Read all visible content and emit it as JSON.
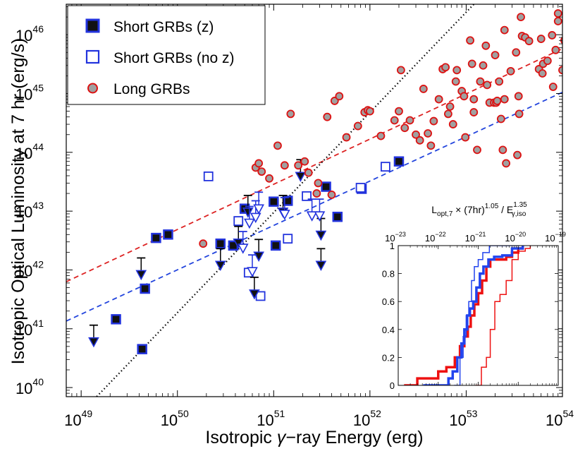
{
  "chart_data": {
    "type": "scatter",
    "title": "",
    "xlabel_pre": "Isotropic ",
    "xlabel_gamma": "γ",
    "xlabel_post": "−ray Energy  (erg)",
    "ylabel": "Isotropic Optical Luminosity at 7 hr  (erg/s)",
    "xscale": "log",
    "yscale": "log",
    "xlim": [
      7e+48,
      1e+54
    ],
    "ylim": [
      7e+39,
      3.3e+46
    ],
    "x_ticks": [
      {
        "base": "10",
        "exp": "49",
        "value": 1e+49
      },
      {
        "base": "10",
        "exp": "50",
        "value": 1e+50
      },
      {
        "base": "10",
        "exp": "51",
        "value": 1e+51
      },
      {
        "base": "10",
        "exp": "52",
        "value": 1e+52
      },
      {
        "base": "10",
        "exp": "53",
        "value": 1e+53
      },
      {
        "base": "10",
        "exp": "54",
        "value": 1e+54
      }
    ],
    "y_ticks": [
      {
        "base": "10",
        "exp": "40",
        "value": 1e+40
      },
      {
        "base": "10",
        "exp": "41",
        "value": 1e+41
      },
      {
        "base": "10",
        "exp": "42",
        "value": 1e+42
      },
      {
        "base": "10",
        "exp": "43",
        "value": 1e+43
      },
      {
        "base": "10",
        "exp": "44",
        "value": 1e+44
      },
      {
        "base": "10",
        "exp": "45",
        "value": 1e+45
      },
      {
        "base": "10",
        "exp": "46",
        "value": 1e+46
      }
    ],
    "legend": [
      {
        "key": "short_z",
        "label": "Short GRBs (z)"
      },
      {
        "key": "short_noz",
        "label": "Short GRBs (no z)"
      },
      {
        "key": "long",
        "label": "Long GRBs"
      }
    ],
    "colors": {
      "short": "#2233dd",
      "long_fill": "#a0a0a0",
      "long_edge": "#dd1111",
      "red_fit": "#dd2222",
      "blue_fit": "#2244dd"
    },
    "series": [
      {
        "name": "Short GRBs (z)",
        "marker": "filled-square",
        "points": [
          {
            "x": 2.3e+49,
            "y": 1.45e+41
          },
          {
            "x": 4.3e+49,
            "y": 4.5e+40
          },
          {
            "x": 4.6e+49,
            "y": 4.8e+41
          },
          {
            "x": 6e+49,
            "y": 3.5e+42
          },
          {
            "x": 8e+49,
            "y": 4e+42
          },
          {
            "x": 2.8e+50,
            "y": 2.8e+42
          },
          {
            "x": 3.8e+50,
            "y": 2.6e+42
          },
          {
            "x": 5e+50,
            "y": 1.1e+43
          },
          {
            "x": 1e+51,
            "y": 1.45e+43
          },
          {
            "x": 1.05e+51,
            "y": 2.6e+42
          },
          {
            "x": 1.4e+51,
            "y": 1.5e+43
          },
          {
            "x": 3.5e+51,
            "y": 2.6e+43
          },
          {
            "x": 4.6e+51,
            "y": 8e+42
          },
          {
            "x": 8.2e+51,
            "y": 2.4e+43
          },
          {
            "x": 2e+52,
            "y": 7e+43
          }
        ]
      },
      {
        "name": "Short GRBs (no z)",
        "marker": "open-square",
        "points": [
          {
            "x": 2.1e+50,
            "y": 3.9e+43
          },
          {
            "x": 4.3e+50,
            "y": 6.8e+42
          },
          {
            "x": 5.5e+50,
            "y": 9e+41
          },
          {
            "x": 7.3e+50,
            "y": 3.6e+41
          },
          {
            "x": 1.4e+51,
            "y": 3.4e+42
          },
          {
            "x": 2.2e+51,
            "y": 1.8e+43
          },
          {
            "x": 8e+51,
            "y": 2.5e+43
          },
          {
            "x": 1.45e+52,
            "y": 5.7e+43
          }
        ]
      },
      {
        "name": "Short GRBs (z) upper limits",
        "marker": "filled-triangle-limit",
        "points": [
          {
            "x": 1.35e+49,
            "y": 1.15e+41
          },
          {
            "x": 4.2e+49,
            "y": 1.6e+42
          },
          {
            "x": 2.8e+50,
            "y": 2.3e+42
          },
          {
            "x": 4.3e+50,
            "y": 5.5e+42
          },
          {
            "x": 5.4e+50,
            "y": 1.85e+43
          },
          {
            "x": 6.3e+50,
            "y": 7.5e+41
          },
          {
            "x": 7e+50,
            "y": 3.3e+42
          },
          {
            "x": 1.25e+51,
            "y": 1.85e+43
          },
          {
            "x": 1.9e+51,
            "y": 7.5e+43
          },
          {
            "x": 3.1e+51,
            "y": 7.5e+42
          },
          {
            "x": 3.1e+51,
            "y": 2.3e+42
          }
        ]
      },
      {
        "name": "Short GRBs (no z) upper limits",
        "marker": "open-triangle-limit",
        "points": [
          {
            "x": 4.8e+50,
            "y": 4.5e+42
          },
          {
            "x": 5.6e+50,
            "y": 1.2e+43
          },
          {
            "x": 6e+50,
            "y": 1.8e+42
          },
          {
            "x": 6.5e+50,
            "y": 1.5e+43
          },
          {
            "x": 7e+50,
            "y": 2.1e+43
          },
          {
            "x": 1.3e+51,
            "y": 1.7e+43
          },
          {
            "x": 2.5e+51,
            "y": 1.6e+43
          },
          {
            "x": 3e+51,
            "y": 1.6e+43
          }
        ]
      },
      {
        "name": "Long GRBs",
        "marker": "circle",
        "points": [
          {
            "x": 1.85e+50,
            "y": 2.8e+42
          },
          {
            "x": 6.5e+50,
            "y": 5.5e+43
          },
          {
            "x": 7e+50,
            "y": 6.5e+43
          },
          {
            "x": 7.5e+50,
            "y": 4.7e+43
          },
          {
            "x": 9e+50,
            "y": 3.6e+43
          },
          {
            "x": 1.1e+51,
            "y": 1.3e+44
          },
          {
            "x": 1.3e+51,
            "y": 6e+43
          },
          {
            "x": 1.5e+51,
            "y": 4.5e+44
          },
          {
            "x": 1.8e+51,
            "y": 6e+43
          },
          {
            "x": 2.1e+51,
            "y": 7e+43
          },
          {
            "x": 2.3e+51,
            "y": 4.5e+43
          },
          {
            "x": 2.8e+51,
            "y": 2e+43
          },
          {
            "x": 2.9e+51,
            "y": 3e+43
          },
          {
            "x": 3.6e+51,
            "y": 4e+44
          },
          {
            "x": 4e+51,
            "y": 1.9e+43
          },
          {
            "x": 4.3e+51,
            "y": 7.5e+44
          },
          {
            "x": 4.8e+51,
            "y": 9e+44
          },
          {
            "x": 5.7e+51,
            "y": 1.8e+44
          },
          {
            "x": 7.5e+51,
            "y": 2.8e+44
          },
          {
            "x": 8.8e+51,
            "y": 4.8e+44
          },
          {
            "x": 9.5e+51,
            "y": 5.2e+44
          },
          {
            "x": 1e+52,
            "y": 5e+44
          },
          {
            "x": 1.3e+52,
            "y": 1.9e+44
          },
          {
            "x": 1.8e+52,
            "y": 3.5e+44
          },
          {
            "x": 2e+52,
            "y": 5e+44
          },
          {
            "x": 2.1e+52,
            "y": 2.5e+45
          },
          {
            "x": 2.3e+52,
            "y": 2.6e+44
          },
          {
            "x": 2.6e+52,
            "y": 3.5e+44
          },
          {
            "x": 3e+52,
            "y": 2e+44
          },
          {
            "x": 3.3e+52,
            "y": 1.6e+44
          },
          {
            "x": 3.6e+52,
            "y": 1.2e+45
          },
          {
            "x": 4e+52,
            "y": 2.1e+44
          },
          {
            "x": 4.3e+52,
            "y": 1.3e+44
          },
          {
            "x": 4.6e+52,
            "y": 3.4e+44
          },
          {
            "x": 5.2e+52,
            "y": 8e+44
          },
          {
            "x": 5.7e+52,
            "y": 2.6e+45
          },
          {
            "x": 6.1e+52,
            "y": 2.8e+45
          },
          {
            "x": 6.5e+52,
            "y": 4.5e+44
          },
          {
            "x": 6.8e+52,
            "y": 6e+44
          },
          {
            "x": 7.3e+52,
            "y": 3e+44
          },
          {
            "x": 7.8e+52,
            "y": 1.6e+45
          },
          {
            "x": 8e+52,
            "y": 2.5e+45
          },
          {
            "x": 9e+52,
            "y": 1.1e+45
          },
          {
            "x": 9.5e+52,
            "y": 9e+44
          },
          {
            "x": 9.8e+52,
            "y": 1.8e+44
          },
          {
            "x": 1.1e+53,
            "y": 8e+45
          },
          {
            "x": 1.15e+53,
            "y": 3.2e+45
          },
          {
            "x": 1.2e+53,
            "y": 8e+44
          },
          {
            "x": 1.2e+53,
            "y": 4.8e+44
          },
          {
            "x": 1.3e+53,
            "y": 1.1e+44
          },
          {
            "x": 1.4e+53,
            "y": 1.6e+45
          },
          {
            "x": 1.5e+53,
            "y": 3e+45
          },
          {
            "x": 1.6e+53,
            "y": 6.5e+45
          },
          {
            "x": 1.65e+53,
            "y": 1.4e+45
          },
          {
            "x": 1.75e+53,
            "y": 7e+44
          },
          {
            "x": 1.95e+53,
            "y": 7e+44
          },
          {
            "x": 2e+53,
            "y": 4.5e+45
          },
          {
            "x": 2.05e+53,
            "y": 7e+44
          },
          {
            "x": 2.1e+53,
            "y": 7.5e+44
          },
          {
            "x": 2.2e+53,
            "y": 1.6e+45
          },
          {
            "x": 2.3e+53,
            "y": 3.7e+44
          },
          {
            "x": 2.4e+53,
            "y": 1.1e+44
          },
          {
            "x": 2.5e+53,
            "y": 1.2e+46
          },
          {
            "x": 2.5e+53,
            "y": 8e+44
          },
          {
            "x": 2.6e+53,
            "y": 6.5e+43
          },
          {
            "x": 2.9e+53,
            "y": 2.4e+45
          },
          {
            "x": 3.3e+53,
            "y": 5e+45
          },
          {
            "x": 3.4e+53,
            "y": 9e+43
          },
          {
            "x": 3.5e+53,
            "y": 9e+44
          },
          {
            "x": 3.55e+53,
            "y": 4.5e+44
          },
          {
            "x": 3.7e+53,
            "y": 2e+46
          },
          {
            "x": 3.8e+53,
            "y": 9.5e+45
          },
          {
            "x": 4.1e+53,
            "y": 9e+45
          },
          {
            "x": 4.5e+53,
            "y": 7.8e+45
          },
          {
            "x": 5.7e+53,
            "y": 2.6e+45
          },
          {
            "x": 6e+53,
            "y": 8.5e+45
          },
          {
            "x": 6.2e+53,
            "y": 2.2e+45
          },
          {
            "x": 6.3e+53,
            "y": 3.2e+45
          },
          {
            "x": 7e+53,
            "y": 3.6e+45
          },
          {
            "x": 7.8e+53,
            "y": 9.8e+45
          },
          {
            "x": 9e+53,
            "y": 1.7e+46
          },
          {
            "x": 1e+54,
            "y": 2.5e+45
          },
          {
            "x": 1.05e+54,
            "y": 8e+45
          },
          {
            "x": 8e+53,
            "y": 1.3e+45
          },
          {
            "x": 9e+53,
            "y": 2.3e+46
          },
          {
            "x": 8.5e+53,
            "y": 5.5e+45
          }
        ]
      }
    ],
    "fit_lines": [
      {
        "name": "long-fit",
        "style": "dashed",
        "color": "#dd2222",
        "points": [
          {
            "x": 7e+48,
            "y": 6.3e+41
          },
          {
            "x": 1e+54,
            "y": 5.8e+45
          }
        ]
      },
      {
        "name": "short-fit",
        "style": "dashed",
        "color": "#2244dd",
        "points": [
          {
            "x": 7e+48,
            "y": 1.35e+41
          },
          {
            "x": 1e+54,
            "y": 1.05e+45
          }
        ]
      },
      {
        "name": "reference",
        "style": "dotted",
        "color": "#000000",
        "points": [
          {
            "x": 1.45e+49,
            "y": 7e+39
          },
          {
            "x": 1.2e+53,
            "y": 3.3e+46
          }
        ]
      }
    ],
    "inset": {
      "type": "line",
      "title_main": "L",
      "title_sub": "opt,7",
      "title_mid": " × (7hr)",
      "title_sup1": "1.05",
      "title_sep": " / E",
      "title_sup2": "1.35",
      "title_sub2": "γ,iso",
      "xscale": "log",
      "xlim": [
        1e-23,
        1e-19
      ],
      "ylim": [
        0,
        1
      ],
      "x_ticks": [
        {
          "base": "10",
          "exp": "−23",
          "value": 1e-23
        },
        {
          "base": "10",
          "exp": "−22",
          "value": 1e-22
        },
        {
          "base": "10",
          "exp": "−21",
          "value": 1e-21
        },
        {
          "base": "10",
          "exp": "−20",
          "value": 1e-20
        },
        {
          "base": "10",
          "exp": "−19",
          "value": 1e-19
        }
      ],
      "y_ticks": [
        {
          "label": "0",
          "value": 0
        },
        {
          "label": "0.2",
          "value": 0.2
        },
        {
          "label": "0.4",
          "value": 0.4
        },
        {
          "label": "0.6",
          "value": 0.6
        },
        {
          "label": "0.8",
          "value": 0.8
        },
        {
          "label": "1",
          "value": 1
        }
      ],
      "series": [
        {
          "name": "red-cdf-thick",
          "color": "#ee1111",
          "width": 3.5,
          "x": [
            1.4e-23,
            3e-23,
            1e-22,
            1.6e-22,
            2.6e-22,
            3.5e-22,
            4.5e-22,
            5.5e-22,
            6.5e-22,
            8e-22,
            1e-21,
            1.25e-21,
            1.6e-21,
            2e-21,
            2.6e-21,
            3.5e-21,
            5e-21,
            7e-21,
            1e-20,
            1.3e-20
          ],
          "y": [
            0,
            0.05,
            0.1,
            0.13,
            0.2,
            0.28,
            0.35,
            0.42,
            0.5,
            0.58,
            0.66,
            0.75,
            0.85,
            0.9,
            0.9,
            0.9,
            0.92,
            0.95,
            0.98,
            1.0
          ]
        },
        {
          "name": "red-cdf-thin",
          "color": "#ee1111",
          "width": 1.5,
          "x": [
            8.5e-22,
            1.2e-21,
            1.6e-21,
            2e-21,
            2.6e-21,
            3.5e-21,
            5e-21,
            7e-21,
            1e-20,
            1.5e-20,
            2e-20
          ],
          "y": [
            0,
            0.13,
            0.2,
            0.4,
            0.6,
            0.65,
            0.75,
            0.9,
            0.96,
            0.98,
            1.0
          ]
        },
        {
          "name": "blue-cdf-thick",
          "color": "#2244ee",
          "width": 3.5,
          "x": [
            4.2e-23,
            1.8e-22,
            2.3e-22,
            3e-22,
            3.8e-22,
            4.5e-22,
            5.3e-22,
            6.2e-22,
            7.5e-22,
            9e-22,
            1.1e-21,
            1.35e-21,
            1.8e-21,
            2.5e-21,
            4e-21,
            7e-21,
            1.3e-20
          ],
          "y": [
            0,
            0.05,
            0.1,
            0.2,
            0.3,
            0.4,
            0.5,
            0.55,
            0.6,
            0.7,
            0.8,
            0.85,
            0.9,
            0.92,
            0.93,
            0.98,
            1.0
          ]
        },
        {
          "name": "blue-cdf-thin",
          "color": "#2244ee",
          "width": 1.5,
          "x": [
            2.5e-22,
            3.5e-22,
            4.2e-22,
            5e-22,
            5.8e-22,
            6.8e-22,
            8e-22,
            1e-21,
            1.3e-21,
            1.9e-21,
            1.1e-20
          ],
          "y": [
            0,
            0.2,
            0.35,
            0.5,
            0.6,
            0.75,
            0.85,
            0.9,
            0.95,
            1.0,
            1.0
          ]
        }
      ]
    }
  }
}
